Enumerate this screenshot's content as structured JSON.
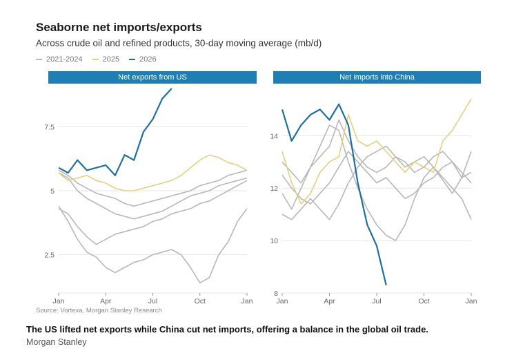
{
  "header": {
    "title": "Seaborne net imports/exports",
    "subtitle": "Across crude oil and refined products, 30-day moving average (mb/d)"
  },
  "legend": [
    {
      "label": "2021-2024",
      "color": "#b8b8b8"
    },
    {
      "label": "2025",
      "color": "#e8cf7f"
    },
    {
      "label": "2026",
      "color": "#1e6f9f"
    }
  ],
  "footer": {
    "source": "Source: Vortexa, Morgan Stanley Research",
    "caption": "The US lifted net exports while China cut net imports, offering a balance in the global oil trade.",
    "credit": "Morgan Stanley"
  },
  "colors": {
    "history": "#b8b8b8",
    "y2025": "#e8cf7f",
    "y2026": "#1e6f9f",
    "panel_header": "#1f7fb5",
    "grid": "#e6e6e6"
  },
  "chart_data": [
    {
      "type": "line",
      "title": "Net exports from US",
      "x_ticks": [
        "Jan",
        "Apr",
        "Jul",
        "Oct",
        "Jan"
      ],
      "y_ticks": [
        2.5,
        5.0,
        7.5
      ],
      "ylim": [
        1.0,
        9.0
      ],
      "grid": true,
      "series": [
        {
          "name": "2021-2024",
          "color": "#b8b8b8",
          "values": [
            5.8,
            5.6,
            5.3,
            5.1,
            4.9,
            4.8,
            4.7,
            4.5,
            4.4,
            4.5,
            4.6,
            4.7,
            4.8,
            4.9,
            5.0,
            5.2,
            5.3,
            5.4,
            5.6,
            5.7,
            5.8
          ]
        },
        {
          "name": "2021-2024",
          "color": "#b8b8b8",
          "values": [
            4.3,
            4.1,
            3.6,
            3.2,
            2.9,
            3.1,
            3.3,
            3.4,
            3.5,
            3.6,
            3.8,
            3.9,
            4.1,
            4.2,
            4.3,
            4.5,
            4.6,
            4.8,
            5.0,
            5.2,
            5.4
          ]
        },
        {
          "name": "2021-2024",
          "color": "#b8b8b8",
          "values": [
            4.4,
            3.8,
            3.1,
            2.6,
            2.4,
            2.0,
            1.8,
            2.0,
            2.2,
            2.3,
            2.5,
            2.6,
            2.7,
            2.5,
            2.0,
            1.4,
            1.6,
            2.5,
            3.0,
            3.8,
            4.3
          ]
        },
        {
          "name": "2021-2024",
          "color": "#b8b8b8",
          "values": [
            5.7,
            5.5,
            5.0,
            4.7,
            4.5,
            4.3,
            4.1,
            4.0,
            3.9,
            4.0,
            4.1,
            4.2,
            4.4,
            4.6,
            4.8,
            4.9,
            5.0,
            5.2,
            5.3,
            5.4,
            5.5
          ]
        },
        {
          "name": "2025",
          "color": "#e8cf7f",
          "values": [
            5.7,
            5.4,
            5.5,
            5.6,
            5.4,
            5.3,
            5.1,
            5.0,
            5.0,
            5.1,
            5.2,
            5.3,
            5.4,
            5.6,
            5.9,
            6.2,
            6.4,
            6.3,
            6.1,
            6.0,
            5.8
          ]
        },
        {
          "name": "2026",
          "color": "#1e6f9f",
          "values": [
            5.9,
            5.7,
            6.2,
            5.8,
            5.9,
            6.0,
            5.6,
            6.4,
            6.2,
            7.3,
            7.8,
            8.6,
            9.0
          ]
        }
      ]
    },
    {
      "type": "line",
      "title": "Net imports into China",
      "x_ticks": [
        "Jan",
        "Apr",
        "Jul",
        "Oct",
        "Jan"
      ],
      "y_ticks": [
        8,
        10,
        12,
        14
      ],
      "ylim": [
        8.0,
        15.8
      ],
      "grid": true,
      "series": [
        {
          "name": "2021-2024",
          "color": "#b8b8b8",
          "values": [
            11.8,
            11.2,
            12.0,
            12.8,
            13.6,
            14.4,
            14.2,
            13.0,
            12.0,
            11.2,
            10.6,
            10.2,
            10.0,
            10.6,
            11.6,
            12.4,
            12.8,
            12.3,
            11.8,
            12.4,
            12.6
          ]
        },
        {
          "name": "2021-2024",
          "color": "#b8b8b8",
          "values": [
            12.5,
            12.0,
            11.6,
            11.4,
            11.8,
            12.2,
            12.8,
            13.4,
            13.0,
            12.6,
            12.2,
            12.4,
            12.0,
            11.6,
            11.8,
            12.2,
            12.4,
            12.8,
            13.0,
            12.6,
            12.2
          ]
        },
        {
          "name": "2021-2024",
          "color": "#b8b8b8",
          "values": [
            11.0,
            10.8,
            11.2,
            11.6,
            11.2,
            10.8,
            11.4,
            12.2,
            12.8,
            13.2,
            13.4,
            13.6,
            13.2,
            12.8,
            13.0,
            13.2,
            12.8,
            12.4,
            12.0,
            11.6,
            10.8
          ]
        },
        {
          "name": "2021-2024",
          "color": "#b8b8b8",
          "values": [
            13.0,
            12.6,
            12.2,
            12.8,
            13.2,
            13.6,
            14.6,
            13.8,
            13.2,
            12.8,
            12.6,
            12.8,
            13.2,
            13.0,
            12.6,
            12.8,
            13.2,
            13.4,
            13.0,
            12.4,
            13.4
          ]
        },
        {
          "name": "2025",
          "color": "#e8cf7f",
          "values": [
            13.4,
            12.2,
            11.4,
            11.8,
            12.6,
            13.0,
            13.2,
            14.8,
            13.8,
            13.6,
            13.8,
            13.4,
            13.0,
            12.6,
            13.0,
            12.8,
            12.6,
            13.8,
            14.2,
            14.8,
            15.4
          ]
        },
        {
          "name": "2026",
          "color": "#1e6f9f",
          "values": [
            15.0,
            13.8,
            14.4,
            14.8,
            15.0,
            14.6,
            15.2,
            14.4,
            12.2,
            10.6,
            9.8,
            8.3
          ]
        }
      ]
    }
  ]
}
